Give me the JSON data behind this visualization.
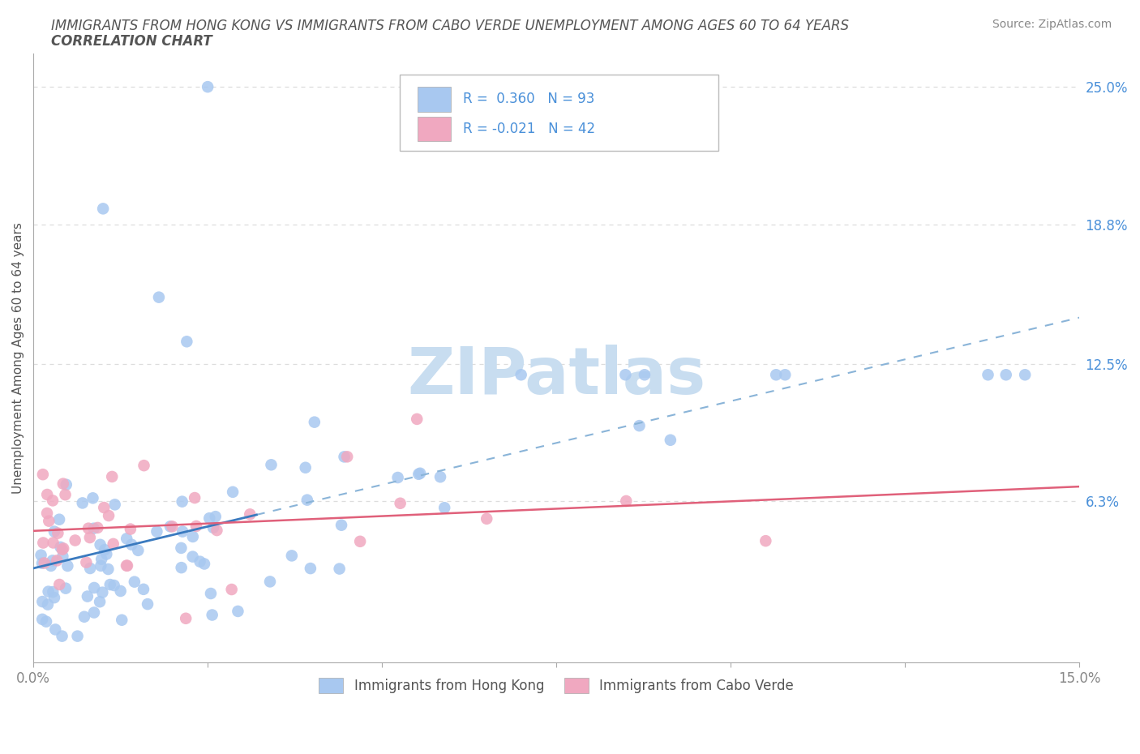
{
  "title_line1": "IMMIGRANTS FROM HONG KONG VS IMMIGRANTS FROM CABO VERDE UNEMPLOYMENT AMONG AGES 60 TO 64 YEARS",
  "title_line2": "CORRELATION CHART",
  "source_text": "Source: ZipAtlas.com",
  "ylabel": "Unemployment Among Ages 60 to 64 years",
  "xlim": [
    0.0,
    0.15
  ],
  "ylim": [
    -0.01,
    0.265
  ],
  "ytick_positions": [
    0.063,
    0.125,
    0.188,
    0.25
  ],
  "ytick_labels": [
    "6.3%",
    "12.5%",
    "18.8%",
    "25.0%"
  ],
  "hk_color": "#a8c8f0",
  "cv_color": "#f0a8c0",
  "hk_line_color": "#3a7abf",
  "cv_line_color": "#e0607a",
  "hk_R": 0.36,
  "hk_N": 93,
  "cv_R": -0.021,
  "cv_N": 42,
  "legend_R_color": "#4a90d9",
  "watermark": "ZIPatlas",
  "watermark_color": "#c8ddf0",
  "title_color": "#555555",
  "axis_label_color": "#555555",
  "tick_label_color": "#888888",
  "right_tick_color": "#4a90d9",
  "grid_color": "#dddddd",
  "spine_color": "#aaaaaa"
}
